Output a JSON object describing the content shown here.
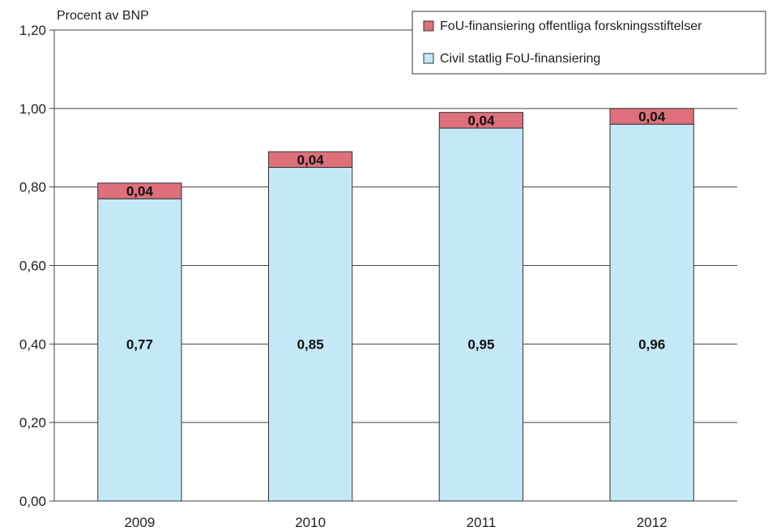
{
  "chart_data": {
    "type": "bar",
    "stacked": true,
    "ylabel": "Procent av BNP",
    "ylim": [
      0,
      1.2
    ],
    "yticks": [
      "0,00",
      "0,20",
      "0,40",
      "0,60",
      "0,80",
      "1,00",
      "1,20"
    ],
    "categories": [
      "2009",
      "2010",
      "2011",
      "2012"
    ],
    "grid": true,
    "legend_position": "top-right",
    "series": [
      {
        "name": "Civil statlig FoU-finansiering",
        "values": [
          0.77,
          0.85,
          0.95,
          0.96
        ],
        "labels": [
          "0,77",
          "0,85",
          "0,95",
          "0,96"
        ],
        "color": "#c5e8f7"
      },
      {
        "name": "FoU-finansiering offentliga forskningsstiftelser",
        "values": [
          0.04,
          0.04,
          0.04,
          0.04
        ],
        "labels": [
          "0,04",
          "0,04",
          "0,04",
          "0,04"
        ],
        "color": "#dd707a"
      }
    ]
  }
}
